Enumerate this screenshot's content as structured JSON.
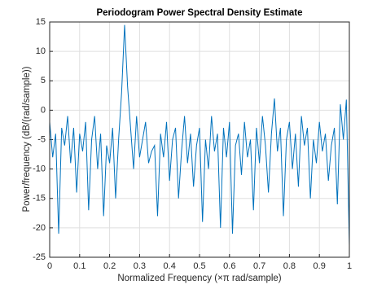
{
  "chart_data": {
    "type": "line",
    "title": "Periodogram Power Spectral Density Estimate",
    "x_label": "Normalized Frequency  (×π rad/sample)",
    "y_label": "Power/frequency (dB/(rad/sample))",
    "x": [
      0,
      0.01,
      0.02,
      0.03,
      0.04,
      0.05,
      0.06,
      0.07,
      0.08,
      0.09,
      0.1,
      0.11,
      0.12,
      0.13,
      0.14,
      0.15,
      0.16,
      0.17,
      0.18,
      0.19,
      0.2,
      0.21,
      0.22,
      0.23,
      0.24,
      0.25,
      0.26,
      0.27,
      0.28,
      0.29,
      0.3,
      0.31,
      0.32,
      0.33,
      0.34,
      0.35,
      0.36,
      0.37,
      0.38,
      0.39,
      0.4,
      0.41,
      0.42,
      0.43,
      0.44,
      0.45,
      0.46,
      0.47,
      0.48,
      0.49,
      0.5,
      0.51,
      0.52,
      0.53,
      0.54,
      0.55,
      0.56,
      0.57,
      0.58,
      0.59,
      0.6,
      0.61,
      0.62,
      0.63,
      0.64,
      0.65,
      0.66,
      0.67,
      0.68,
      0.69,
      0.7,
      0.71,
      0.72,
      0.73,
      0.74,
      0.75,
      0.76,
      0.77,
      0.78,
      0.79,
      0.8,
      0.81,
      0.82,
      0.83,
      0.84,
      0.85,
      0.86,
      0.87,
      0.88,
      0.89,
      0.9,
      0.91,
      0.92,
      0.93,
      0.94,
      0.95,
      0.96,
      0.97,
      0.98,
      0.99,
      1
    ],
    "series": [
      {
        "color": "#0072bd",
        "values": [
          -2,
          -8,
          -4,
          -21,
          -3,
          -6,
          -1,
          -9,
          -3,
          -14,
          -4,
          -7,
          -2,
          -17,
          -5,
          -1,
          -10,
          -4,
          -18,
          -6,
          -9,
          -3,
          -15,
          -5,
          3,
          14.5,
          4,
          -3,
          -10,
          -1,
          -8,
          -5,
          -2,
          -9,
          -7,
          -6,
          -18,
          -4,
          -8,
          -2,
          -12,
          -5,
          -3,
          -15,
          -7,
          -1,
          -9,
          -4,
          -13,
          -6,
          -3,
          -19,
          -5,
          -10,
          -1,
          -7,
          -4,
          -20,
          -3,
          -8,
          -2,
          -21,
          -6,
          -4,
          -11,
          -2,
          -8,
          -5,
          -17,
          -3,
          -9,
          -1,
          -6,
          -14,
          -4,
          2,
          -7,
          -3,
          -18,
          -5,
          -2,
          -10,
          -4,
          -13,
          -1,
          -6,
          -3,
          -15,
          -5,
          -9,
          -2,
          -7,
          -4,
          -12,
          -6,
          -3,
          -16,
          1,
          -5,
          1.8,
          -23
        ]
      }
    ],
    "xlim": [
      0,
      1
    ],
    "ylim": [
      -25,
      15
    ],
    "xticks": [
      0,
      0.1,
      0.2,
      0.3,
      0.4,
      0.5,
      0.6,
      0.7,
      0.8,
      0.9,
      1
    ],
    "yticks": [
      -25,
      -20,
      -15,
      -10,
      -5,
      0,
      5,
      10,
      15
    ],
    "grid": true
  }
}
